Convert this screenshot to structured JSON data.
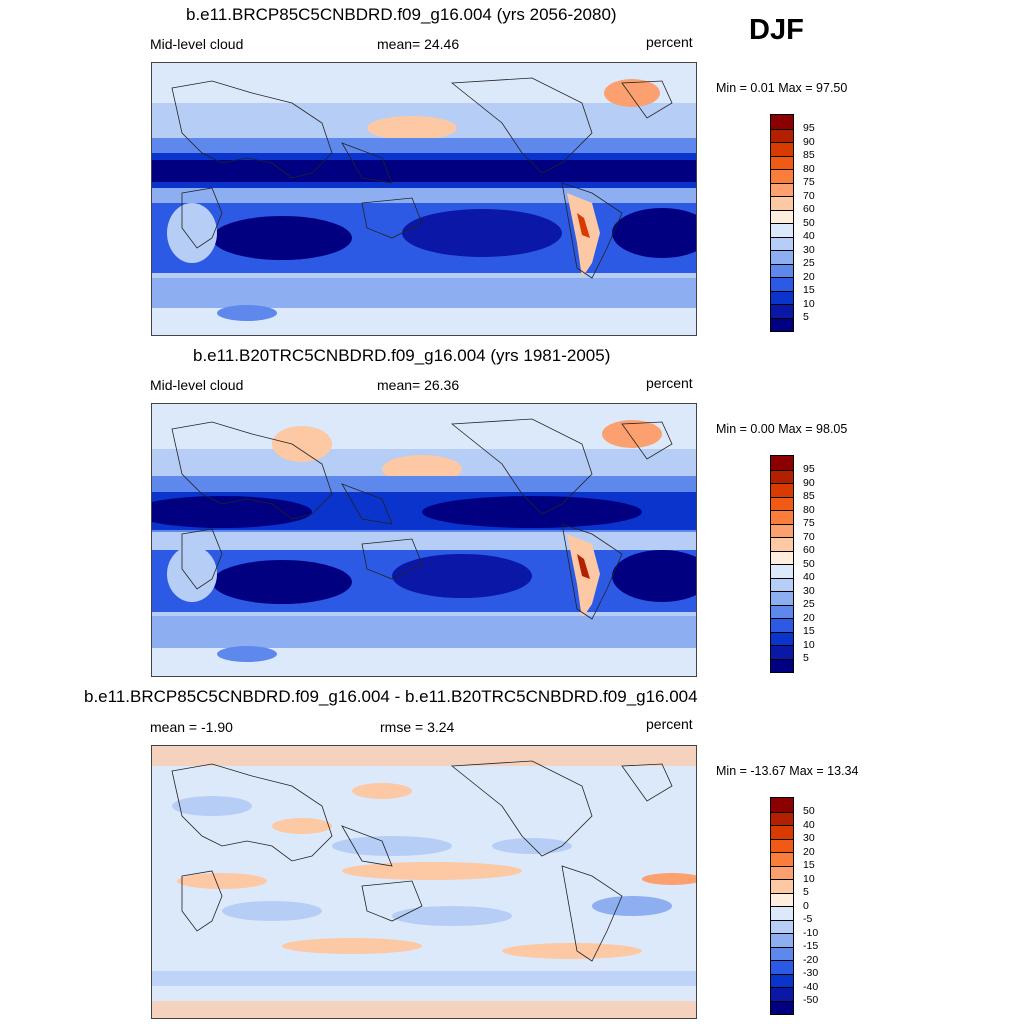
{
  "season": "DJF",
  "panels": [
    {
      "title": "b.e11.BRCP85C5CNBDRD.f09_g16.004 (yrs 2056-2080)",
      "left_label": "Mid-level cloud",
      "center_label": "mean=  24.46",
      "units": "percent",
      "minmax": "Min =   0.01 Max =  97.50",
      "min": 0.01,
      "max": 97.5,
      "mean": 24.46
    },
    {
      "title": "b.e11.B20TRC5CNBDRD.f09_g16.004 (yrs 1981-2005)",
      "left_label": "Mid-level cloud",
      "center_label": "mean=  26.36",
      "units": "percent",
      "minmax": "Min =   0.00 Max =  98.05",
      "min": 0.0,
      "max": 98.05,
      "mean": 26.36
    },
    {
      "title": "b.e11.BRCP85C5CNBDRD.f09_g16.004 - b.e11.B20TRC5CNBDRD.f09_g16.004",
      "left_label": "mean =  -1.90",
      "center_label": "rmse =   3.24",
      "units": "percent",
      "minmax": "Min = -13.67 Max =  13.34",
      "min": -13.67,
      "max": 13.34,
      "mean": -1.9,
      "rmse": 3.24
    }
  ],
  "colorbars": {
    "absolute": {
      "labels": [
        "95",
        "90",
        "85",
        "80",
        "75",
        "70",
        "60",
        "50",
        "40",
        "30",
        "25",
        "20",
        "15",
        "10",
        "5"
      ],
      "colors": [
        "#8b0000",
        "#b22000",
        "#d83a00",
        "#f05a14",
        "#fb7d3c",
        "#fca070",
        "#fdc8a4",
        "#ffeedd",
        "#dce9fb",
        "#b6cdf6",
        "#8eaef2",
        "#5f88ec",
        "#2d5ae4",
        "#0a34cc",
        "#0b17a6",
        "#000080"
      ]
    },
    "difference": {
      "labels": [
        "50",
        "40",
        "30",
        "20",
        "15",
        "10",
        "5",
        "0",
        "-5",
        "-10",
        "-15",
        "-20",
        "-30",
        "-40",
        "-50"
      ],
      "colors": [
        "#8b0000",
        "#b22000",
        "#d83a00",
        "#f05a14",
        "#fb7d3c",
        "#fca070",
        "#fdc8a4",
        "#ffeedd",
        "#dce9fb",
        "#b6cdf6",
        "#8eaef2",
        "#5f88ec",
        "#2d5ae4",
        "#0a34cc",
        "#0b17a6",
        "#000080"
      ]
    }
  }
}
